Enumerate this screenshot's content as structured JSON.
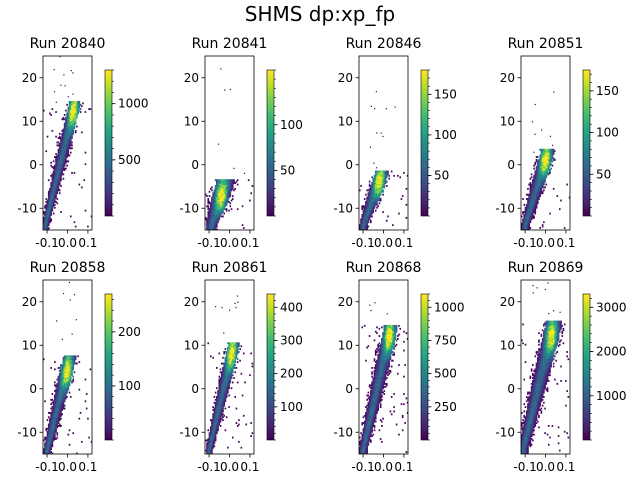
{
  "figure": {
    "suptitle": "SHMS dp:xp_fp"
  },
  "chart_data": [
    {
      "type": "heatmap",
      "title": "Run 20840",
      "xlim": [
        -0.12,
        0.12
      ],
      "ylim": [
        -15,
        25
      ],
      "xticks": [
        "-0.1",
        "0.0",
        "0.1"
      ],
      "yticks": [
        "-10",
        "0",
        "10",
        "20"
      ],
      "colorbar": {
        "min": 0,
        "max": 1300,
        "ticks": [
          "500",
          "1000"
        ],
        "tick_values": [
          500,
          1000
        ]
      },
      "band": {
        "x0": -0.11,
        "y0": -14,
        "x1": 0.035,
        "y1": 14,
        "width": 0.025,
        "peak": [
          0.03,
          12
        ],
        "tail": true
      },
      "colorscale": "viridis"
    },
    {
      "type": "heatmap",
      "title": "Run 20841",
      "xlim": [
        -0.12,
        0.12
      ],
      "ylim": [
        -15,
        25
      ],
      "xticks": [
        "-0.1",
        "0.0",
        "0.1"
      ],
      "yticks": [
        "-10",
        "0",
        "10",
        "20"
      ],
      "colorbar": {
        "min": 0,
        "max": 160,
        "ticks": [
          "50",
          "100"
        ],
        "tick_values": [
          50,
          100
        ]
      },
      "band": {
        "x0": -0.09,
        "y0": -14,
        "x1": -0.02,
        "y1": -4,
        "width": 0.04,
        "peak": [
          -0.04,
          -7
        ],
        "tail": false
      },
      "colorscale": "viridis"
    },
    {
      "type": "heatmap",
      "title": "Run 20846",
      "xlim": [
        -0.12,
        0.12
      ],
      "ylim": [
        -15,
        25
      ],
      "xticks": [
        "-0.1",
        "0.0",
        "0.1"
      ],
      "yticks": [
        "-10",
        "0",
        "10",
        "20"
      ],
      "colorbar": {
        "min": 0,
        "max": 180,
        "ticks": [
          "50",
          "100",
          "150"
        ],
        "tick_values": [
          50,
          100,
          150
        ]
      },
      "band": {
        "x0": -0.1,
        "y0": -14,
        "x1": -0.01,
        "y1": -2,
        "width": 0.03,
        "peak": [
          -0.02,
          -4
        ],
        "tail": false
      },
      "colorscale": "viridis"
    },
    {
      "type": "heatmap",
      "title": "Run 20851",
      "xlim": [
        -0.12,
        0.12
      ],
      "ylim": [
        -15,
        25
      ],
      "xticks": [
        "-0.1",
        "0.0",
        "0.1"
      ],
      "yticks": [
        "-10",
        "0",
        "10",
        "20"
      ],
      "colorbar": {
        "min": 0,
        "max": 175,
        "ticks": [
          "50",
          "100",
          "150"
        ],
        "tick_values": [
          50,
          100,
          150
        ]
      },
      "band": {
        "x0": -0.1,
        "y0": -14,
        "x1": 0.01,
        "y1": 3,
        "width": 0.03,
        "peak": [
          0.0,
          1
        ],
        "tail": false
      },
      "colorscale": "viridis"
    },
    {
      "type": "heatmap",
      "title": "Run 20858",
      "xlim": [
        -0.12,
        0.12
      ],
      "ylim": [
        -15,
        25
      ],
      "xticks": [
        "-0.1",
        "0.0",
        "0.1"
      ],
      "yticks": [
        "-10",
        "0",
        "10",
        "20"
      ],
      "colorbar": {
        "min": 0,
        "max": 270,
        "ticks": [
          "100",
          "200"
        ],
        "tick_values": [
          100,
          200
        ]
      },
      "band": {
        "x0": -0.1,
        "y0": -14,
        "x1": 0.01,
        "y1": 7,
        "width": 0.028,
        "peak": [
          0.0,
          4
        ],
        "tail": false
      },
      "colorscale": "viridis"
    },
    {
      "type": "heatmap",
      "title": "Run 20861",
      "xlim": [
        -0.12,
        0.12
      ],
      "ylim": [
        -15,
        25
      ],
      "xticks": [
        "-0.1",
        "0.0",
        "0.1"
      ],
      "yticks": [
        "-10",
        "0",
        "10",
        "20"
      ],
      "colorbar": {
        "min": 0,
        "max": 440,
        "ticks": [
          "100",
          "200",
          "300",
          "400"
        ],
        "tick_values": [
          100,
          200,
          300,
          400
        ]
      },
      "band": {
        "x0": -0.1,
        "y0": -14,
        "x1": 0.02,
        "y1": 10,
        "width": 0.025,
        "peak": [
          0.01,
          8
        ],
        "tail": false
      },
      "colorscale": "viridis"
    },
    {
      "type": "heatmap",
      "title": "Run 20868",
      "xlim": [
        -0.12,
        0.12
      ],
      "ylim": [
        -15,
        25
      ],
      "xticks": [
        "-0.1",
        "0.0",
        "0.1"
      ],
      "yticks": [
        "-10",
        "0",
        "10",
        "20"
      ],
      "colorbar": {
        "min": 0,
        "max": 1100,
        "ticks": [
          "250",
          "500",
          "750",
          "1000"
        ],
        "tick_values": [
          250,
          500,
          750,
          1000
        ]
      },
      "band": {
        "x0": -0.1,
        "y0": -14,
        "x1": 0.035,
        "y1": 14,
        "width": 0.03,
        "peak": [
          0.03,
          12
        ],
        "tail": false
      },
      "colorscale": "viridis"
    },
    {
      "type": "heatmap",
      "title": "Run 20869",
      "xlim": [
        -0.12,
        0.12
      ],
      "ylim": [
        -15,
        25
      ],
      "xticks": [
        "-0.1",
        "0.0",
        "0.1"
      ],
      "yticks": [
        "-10",
        "0",
        "10",
        "20"
      ],
      "colorbar": {
        "min": 0,
        "max": 3300,
        "ticks": [
          "1000",
          "2000",
          "3000"
        ],
        "tick_values": [
          1000,
          2000,
          3000
        ]
      },
      "band": {
        "x0": -0.11,
        "y0": -14,
        "x1": 0.04,
        "y1": 15,
        "width": 0.035,
        "peak": [
          0.03,
          12
        ],
        "tail": true
      },
      "colorscale": "viridis"
    }
  ]
}
